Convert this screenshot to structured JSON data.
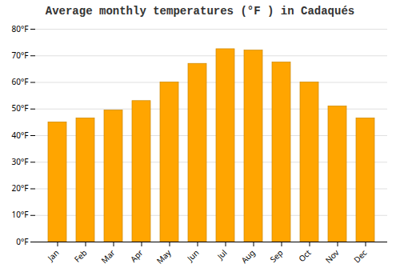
{
  "chart_data": {
    "type": "bar",
    "title": "Average monthly temperatures (°F ) in Cadaqués",
    "categories": [
      "Jan",
      "Feb",
      "Mar",
      "Apr",
      "May",
      "Jun",
      "Jul",
      "Aug",
      "Sep",
      "Oct",
      "Nov",
      "Dec"
    ],
    "values": [
      45,
      46.5,
      49.5,
      53,
      60,
      67,
      72.5,
      72,
      67.5,
      60,
      51,
      46.5
    ],
    "color": "#FFA500",
    "ylim": [
      0,
      80
    ],
    "yticks": [
      {
        "value": 0,
        "label": "0°F"
      },
      {
        "value": 10,
        "label": "10°F"
      },
      {
        "value": 20,
        "label": "20°F"
      },
      {
        "value": 30,
        "label": "30°F"
      },
      {
        "value": 40,
        "label": "40°F"
      },
      {
        "value": 50,
        "label": "50°F"
      },
      {
        "value": 60,
        "label": "60°F"
      },
      {
        "value": 70,
        "label": "70°F"
      },
      {
        "value": 80,
        "label": "80°F"
      }
    ],
    "grid": true
  }
}
